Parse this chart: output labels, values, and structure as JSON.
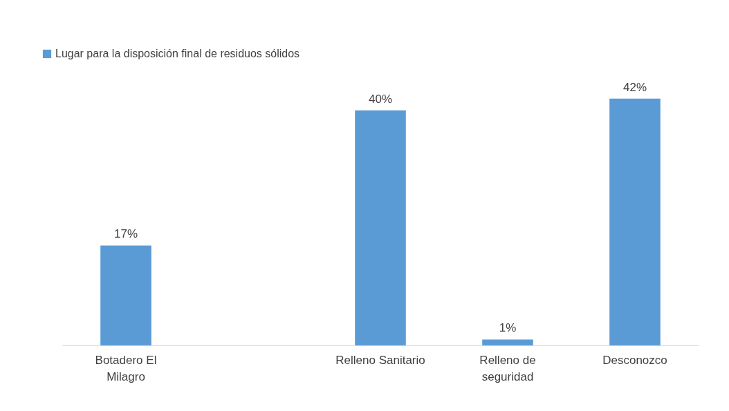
{
  "chart_data": {
    "type": "bar",
    "categories": [
      "Botadero El Milagro",
      null,
      "Relleno Sanitario",
      "Relleno de seguridad",
      "Desconozco"
    ],
    "series": [
      {
        "name": "Lugar para la disposición final de residuos sólidos",
        "color": "#5b9bd5",
        "values": [
          17,
          null,
          40,
          1,
          42
        ],
        "value_labels": [
          "17%",
          null,
          "40%",
          "1%",
          "42%"
        ]
      }
    ],
    "legend": "top left",
    "grid": false
  }
}
